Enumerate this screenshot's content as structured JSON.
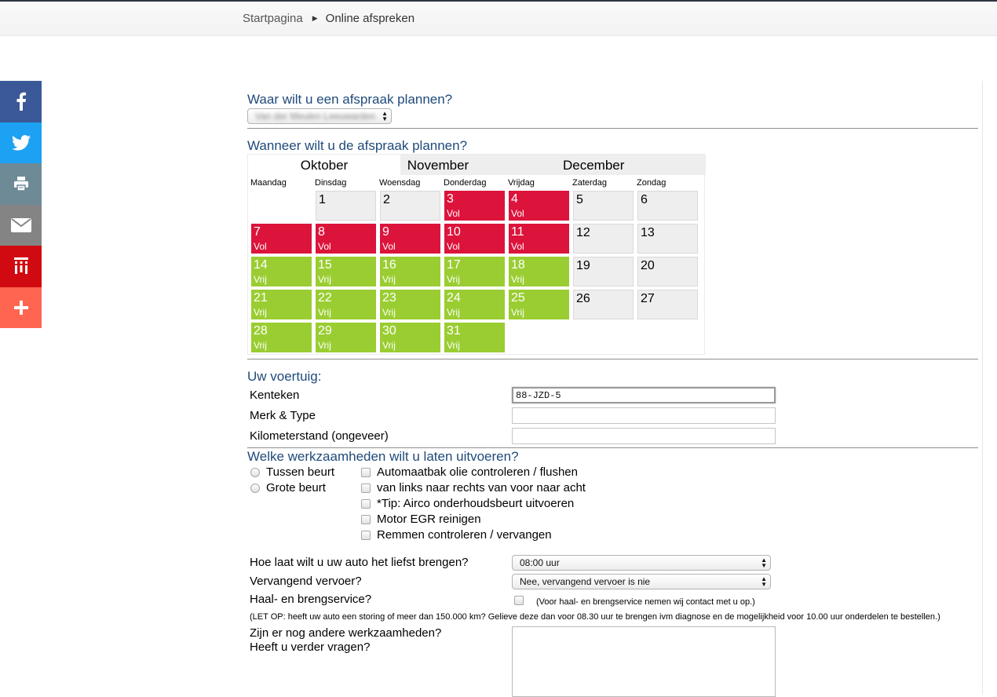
{
  "breadcrumb": {
    "home": "Startpagina",
    "current": "Online afspreken"
  },
  "share": [
    {
      "icon": "facebook-icon",
      "color": "#3b5998"
    },
    {
      "icon": "twitter-icon",
      "color": "#1da1f2"
    },
    {
      "icon": "print-icon",
      "color": "#6d8a96"
    },
    {
      "icon": "email-icon",
      "color": "#848484"
    },
    {
      "icon": "jij-icon",
      "color": "#d10a11"
    },
    {
      "icon": "plus-icon",
      "color": "#ff6550"
    }
  ],
  "location": {
    "title": "Waar wilt u een afspraak plannen?",
    "selected": "Van der Meulen Leeuwarden"
  },
  "calendar": {
    "title": "Wanneer wilt u de afspraak plannen?",
    "tabs": [
      "Oktober",
      "November",
      "December"
    ],
    "active_tab": "Oktober",
    "daynames": [
      "Maandag",
      "Dinsdag",
      "Woensdag",
      "Donderdag",
      "Vrijdag",
      "Zaterdag",
      "Zondag"
    ],
    "days": [
      {
        "n": "1",
        "status": ""
      },
      {
        "n": "2",
        "status": ""
      },
      {
        "n": "3",
        "status": "Vol"
      },
      {
        "n": "4",
        "status": "Vol"
      },
      {
        "n": "5",
        "status": ""
      },
      {
        "n": "6",
        "status": ""
      },
      {
        "n": "7",
        "status": "Vol"
      },
      {
        "n": "8",
        "status": "Vol"
      },
      {
        "n": "9",
        "status": "Vol"
      },
      {
        "n": "10",
        "status": "Vol"
      },
      {
        "n": "11",
        "status": "Vol"
      },
      {
        "n": "12",
        "status": ""
      },
      {
        "n": "13",
        "status": ""
      },
      {
        "n": "14",
        "status": "Vrij"
      },
      {
        "n": "15",
        "status": "Vrij"
      },
      {
        "n": "16",
        "status": "Vrij"
      },
      {
        "n": "17",
        "status": "Vrij"
      },
      {
        "n": "18",
        "status": "Vrij"
      },
      {
        "n": "19",
        "status": ""
      },
      {
        "n": "20",
        "status": ""
      },
      {
        "n": "21",
        "status": "Vrij"
      },
      {
        "n": "22",
        "status": "Vrij"
      },
      {
        "n": "23",
        "status": "Vrij"
      },
      {
        "n": "24",
        "status": "Vrij"
      },
      {
        "n": "25",
        "status": "Vrij"
      },
      {
        "n": "26",
        "status": ""
      },
      {
        "n": "27",
        "status": ""
      },
      {
        "n": "28",
        "status": "Vrij"
      },
      {
        "n": "29",
        "status": "Vrij"
      },
      {
        "n": "30",
        "status": "Vrij"
      },
      {
        "n": "31",
        "status": "Vrij"
      }
    ],
    "colors": {
      "vol": "#dc143c",
      "vrij": "#9acd32",
      "neutral": "#eeeeee"
    }
  },
  "vehicle": {
    "title": "Uw voertuig:",
    "fields": [
      {
        "label": "Kenteken",
        "value": "88-JZD-5"
      },
      {
        "label": "Merk & Type",
        "value": ""
      },
      {
        "label": "Kilometerstand (ongeveer)",
        "value": ""
      }
    ]
  },
  "work": {
    "title": "Welke werkzaamheden wilt u laten uitvoeren?",
    "radios": [
      "Tussen beurt",
      "Grote beurt"
    ],
    "checks": [
      "Automaatbak olie controleren / flushen",
      "van links naar rechts van voor naar acht",
      "*Tip: Airco onderhoudsbeurt uitvoeren",
      "Motor EGR reinigen",
      "Remmen controleren / vervangen"
    ]
  },
  "extra": {
    "time_label": "Hoe laat wilt u uw auto het liefst brengen?",
    "time_value": "08:00 uur",
    "transport_label": "Vervangend vervoer?",
    "transport_value": "Nee, vervangend vervoer is nie",
    "pickup_label": "Haal- en brengservice?",
    "pickup_note": "(Voor haal- en brengservice nemen wij contact met u op.)",
    "note": "(LET OP: heeft uw auto een storing of meer dan 150.000 km? Gelieve deze dan voor 08.30 uur te brengen ivm diagnose en de mogelijkheid voor 10.00 uur onderdelen te bestellen.)",
    "questions_line1": "Zijn er nog andere werkzaamheden?",
    "questions_line2": "Heeft u verder vragen?"
  }
}
